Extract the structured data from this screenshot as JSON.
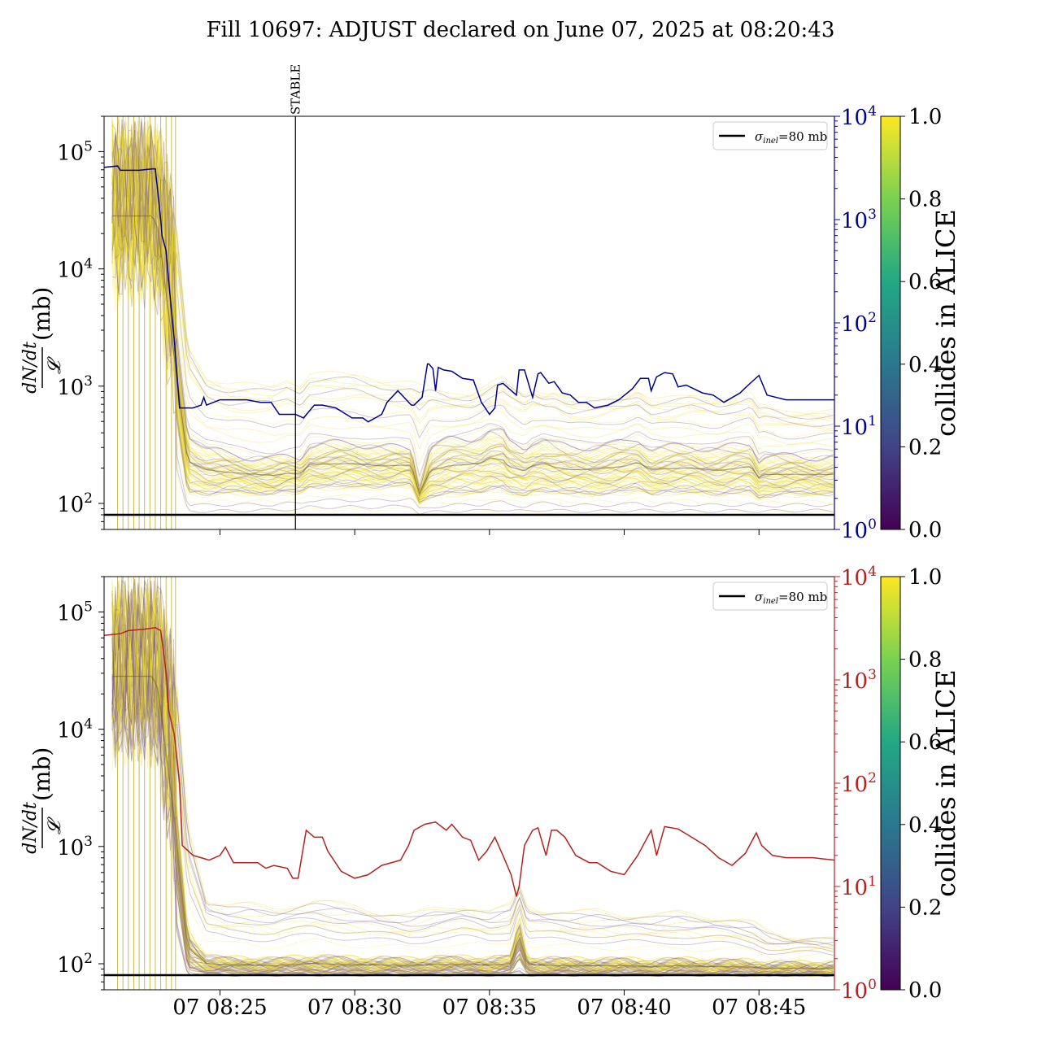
{
  "title": "Fill 10697: ADJUST declared on June 07, 2025 at 08:20:43",
  "colors": {
    "top_right_axis": "#00008b",
    "bottom_right_axis": "#b22222",
    "reference_line": "#000000",
    "viridis": [
      "#440154",
      "#414487",
      "#2a788e",
      "#22a884",
      "#7ad151",
      "#fde725"
    ]
  },
  "chart_data": [
    {
      "type": "line",
      "panel": "top",
      "ylabel": "dN/dt / 𝓛 (mb)",
      "ylabel_num": "dN/dt",
      "ylabel_den": "𝓛",
      "ylabel_unit": "(mb)",
      "yscale": "log",
      "ylim": [
        60,
        200000
      ],
      "y_ticks": [
        {
          "exp": "2",
          "value": 100
        },
        {
          "exp": "3",
          "value": 1000
        },
        {
          "exp": "4",
          "value": 10000
        },
        {
          "exp": "5",
          "value": 100000
        }
      ],
      "y2scale": "log",
      "y2lim": [
        1,
        10000
      ],
      "y2_ticks": [
        {
          "exp": "0",
          "value": 1
        },
        {
          "exp": "1",
          "value": 10
        },
        {
          "exp": "2",
          "value": 100
        },
        {
          "exp": "3",
          "value": 1000
        },
        {
          "exp": "4",
          "value": 10000
        }
      ],
      "x_ticks": [
        "07 08:25",
        "07 08:30",
        "07 08:35",
        "07 08:40",
        "07 08:45"
      ],
      "xlim_minutes": [
        20.7,
        47.8
      ],
      "x_tick_minutes": [
        25,
        30,
        35,
        40,
        45
      ],
      "show_x_tick_labels": false,
      "annotation": {
        "text": "STABLE",
        "x_minute": 27.8
      },
      "reference_line": {
        "label_sym": "σ",
        "label_sub": "inel",
        "label_rest": "=80 mb",
        "value": 80
      },
      "colorbar": {
        "label": "collides in ALICE",
        "ticks": [
          "0.0",
          "0.2",
          "0.4",
          "0.6",
          "0.8",
          "1.0"
        ],
        "range": [
          0,
          1
        ]
      },
      "right_series": {
        "name": "",
        "x_minutes": [
          20.7,
          21.2,
          21.3,
          22.0,
          22.5,
          22.6,
          22.8,
          22.85,
          23.0,
          23.1,
          23.3,
          23.5,
          23.6,
          24.0,
          24.3,
          24.4,
          24.5,
          25.0,
          25.3,
          25.5,
          26.0,
          26.5,
          26.9,
          27.2,
          27.5,
          27.8,
          28.1,
          28.5,
          28.8,
          29.3,
          29.9,
          30.3,
          30.5,
          31.0,
          31.2,
          31.6,
          32.1,
          32.2,
          32.5,
          32.7,
          32.75,
          32.9,
          33.0,
          33.1,
          33.3,
          33.6,
          34.0,
          34.4,
          34.7,
          35.0,
          35.2,
          35.3,
          35.5,
          36.0,
          36.1,
          36.3,
          36.6,
          36.8,
          36.9,
          37.2,
          37.4,
          37.7,
          38.0,
          38.3,
          38.6,
          38.9,
          39.4,
          39.8,
          40.3,
          40.6,
          40.9,
          41.0,
          41.2,
          41.5,
          41.8,
          42.0,
          42.3,
          42.9,
          43.3,
          43.7,
          44.3,
          44.6,
          45.0,
          45.3,
          46.0,
          47.0,
          47.8
        ],
        "values": [
          3200,
          3300,
          3000,
          3000,
          3100,
          3100,
          1000,
          700,
          500,
          250,
          70,
          15,
          15,
          15,
          16,
          19,
          16,
          18,
          18,
          18,
          18,
          17,
          17,
          13,
          13,
          13,
          12,
          16,
          16,
          15,
          12,
          12,
          11,
          13,
          17,
          22,
          16,
          16,
          19,
          40,
          40,
          36,
          22,
          37,
          35,
          34,
          29,
          28,
          17,
          13,
          15,
          25,
          26,
          20,
          35,
          35,
          19,
          32,
          33,
          26,
          27,
          21,
          20,
          17,
          17,
          15,
          16,
          18,
          23,
          29,
          29,
          22,
          30,
          33,
          32,
          24,
          25,
          21,
          20,
          17,
          21,
          25,
          31,
          20,
          18,
          18,
          18
        ]
      },
      "bands": {
        "x_minutes": [
          21.0,
          22.5,
          22.7,
          23.3,
          23.8,
          24.5,
          25.3,
          27.0,
          27.5,
          28.0,
          28.3,
          30.0,
          31.0,
          32.1,
          32.4,
          32.8,
          33.5,
          34.3,
          34.7,
          35.0,
          35.5,
          35.7,
          36.3,
          36.6,
          37.0,
          37.4,
          38.0,
          39.0,
          40.0,
          40.5,
          41.0,
          41.5,
          42.5,
          43.5,
          44.7,
          45.0,
          45.2,
          46.0,
          47.8
        ],
        "upper": [
          200000,
          200000,
          200000,
          60000,
          3000,
          1500,
          1300,
          1300,
          1500,
          1300,
          1600,
          1600,
          1400,
          1300,
          1400,
          1200,
          1000,
          1000,
          1100,
          1200,
          1400,
          1300,
          1000,
          1100,
          1000,
          1100,
          900,
          900,
          1000,
          1100,
          900,
          900,
          1000,
          900,
          1000,
          800,
          800,
          700,
          700
        ],
        "core_hi": [
          80000,
          80000,
          60000,
          4000,
          400,
          300,
          260,
          240,
          250,
          250,
          320,
          330,
          300,
          300,
          140,
          300,
          350,
          360,
          380,
          420,
          400,
          330,
          300,
          340,
          360,
          320,
          300,
          310,
          330,
          360,
          300,
          300,
          310,
          290,
          330,
          240,
          260,
          250,
          250
        ],
        "core_lo": [
          10000,
          10000,
          8000,
          800,
          130,
          125,
          130,
          125,
          130,
          130,
          145,
          145,
          145,
          150,
          105,
          120,
          125,
          130,
          130,
          140,
          140,
          130,
          120,
          130,
          135,
          130,
          125,
          125,
          130,
          140,
          125,
          130,
          130,
          125,
          130,
          115,
          120,
          125,
          125
        ],
        "lower": [
          3000,
          3000,
          2000,
          200,
          82,
          82,
          82,
          84,
          85,
          85,
          88,
          88,
          88,
          90,
          80,
          80,
          82,
          82,
          82,
          84,
          84,
          82,
          82,
          83,
          84,
          83,
          82,
          82,
          82,
          83,
          82,
          82,
          82,
          82,
          83,
          82,
          82,
          83,
          83
        ]
      },
      "spike_lines": [
        21.2,
        21.4,
        21.6,
        21.8,
        22.0,
        22.2,
        22.4,
        22.6,
        22.8,
        23.0,
        23.2,
        23.35
      ]
    },
    {
      "type": "line",
      "panel": "bottom",
      "ylabel": "dN/dt / 𝓛 (mb)",
      "ylabel_num": "dN/dt",
      "ylabel_den": "𝓛",
      "ylabel_unit": "(mb)",
      "yscale": "log",
      "ylim": [
        60,
        200000
      ],
      "y_ticks": [
        {
          "exp": "2",
          "value": 100
        },
        {
          "exp": "3",
          "value": 1000
        },
        {
          "exp": "4",
          "value": 10000
        },
        {
          "exp": "5",
          "value": 100000
        }
      ],
      "y2scale": "log",
      "y2lim": [
        1,
        10000
      ],
      "y2_ticks": [
        {
          "exp": "0",
          "value": 1
        },
        {
          "exp": "1",
          "value": 10
        },
        {
          "exp": "2",
          "value": 100
        },
        {
          "exp": "3",
          "value": 1000
        },
        {
          "exp": "4",
          "value": 10000
        }
      ],
      "x_ticks": [
        "07 08:25",
        "07 08:30",
        "07 08:35",
        "07 08:40",
        "07 08:45"
      ],
      "xlim_minutes": [
        20.7,
        47.8
      ],
      "x_tick_minutes": [
        25,
        30,
        35,
        40,
        45
      ],
      "show_x_tick_labels": true,
      "reference_line": {
        "label_sym": "σ",
        "label_sub": "inel",
        "label_rest": "=80 mb",
        "value": 80
      },
      "colorbar": {
        "label": "collides in ALICE",
        "ticks": [
          "0.0",
          "0.2",
          "0.4",
          "0.6",
          "0.8",
          "1.0"
        ],
        "range": [
          0,
          1
        ]
      },
      "right_series": {
        "name": "",
        "x_minutes": [
          20.7,
          21.3,
          21.6,
          22.2,
          22.6,
          22.8,
          23.0,
          23.1,
          23.3,
          23.5,
          23.6,
          24.0,
          24.3,
          24.6,
          25.0,
          25.2,
          25.5,
          26.0,
          26.4,
          26.7,
          27.0,
          27.5,
          27.7,
          27.9,
          28.2,
          28.5,
          28.8,
          29.0,
          29.5,
          30.0,
          30.5,
          31.0,
          31.7,
          32.0,
          32.2,
          32.6,
          33.0,
          33.4,
          33.6,
          34.0,
          34.3,
          34.6,
          34.9,
          35.2,
          35.5,
          35.8,
          36.0,
          36.1,
          36.3,
          36.6,
          36.8,
          37.1,
          37.3,
          37.5,
          37.8,
          38.2,
          38.7,
          39.0,
          39.5,
          40.0,
          40.5,
          41.0,
          41.2,
          41.5,
          42.0,
          42.5,
          43.0,
          43.5,
          44.0,
          44.5,
          44.9,
          45.1,
          45.5,
          46.0,
          47.0,
          47.8
        ],
        "values": [
          2700,
          2800,
          3000,
          3100,
          3200,
          3000,
          1200,
          500,
          300,
          100,
          25,
          20,
          19,
          18,
          20,
          24,
          17,
          17,
          17,
          15,
          16,
          15,
          12,
          12,
          35,
          30,
          30,
          22,
          14,
          12,
          13,
          16,
          18,
          25,
          35,
          40,
          42,
          35,
          40,
          30,
          28,
          18,
          22,
          30,
          20,
          13,
          8,
          10,
          25,
          35,
          37,
          20,
          35,
          35,
          30,
          20,
          17,
          17,
          14,
          13,
          20,
          35,
          20,
          38,
          36,
          30,
          25,
          19,
          16,
          21,
          33,
          25,
          20,
          19,
          19,
          18
        ]
      },
      "bands": {
        "x_minutes": [
          21.0,
          22.5,
          22.7,
          23.3,
          23.8,
          24.5,
          25.3,
          26.0,
          27.0,
          28.5,
          30.0,
          31.0,
          32.0,
          33.0,
          34.0,
          35.0,
          35.8,
          36.1,
          36.4,
          37.0,
          38.0,
          39.0,
          40.0,
          41.0,
          42.0,
          43.0,
          44.0,
          44.8,
          45.3,
          46.0,
          47.8
        ],
        "upper": [
          200000,
          200000,
          200000,
          60000,
          2000,
          400,
          350,
          360,
          330,
          380,
          350,
          300,
          280,
          330,
          350,
          300,
          350,
          500,
          350,
          320,
          300,
          310,
          290,
          280,
          300,
          280,
          260,
          240,
          200,
          180,
          170
        ],
        "core_hi": [
          80000,
          80000,
          60000,
          4000,
          200,
          115,
          110,
          110,
          108,
          115,
          110,
          110,
          108,
          112,
          112,
          110,
          115,
          250,
          112,
          110,
          108,
          108,
          108,
          105,
          108,
          106,
          105,
          104,
          100,
          100,
          100
        ],
        "core_lo": [
          10000,
          10000,
          8000,
          800,
          95,
          88,
          87,
          87,
          86,
          88,
          87,
          87,
          86,
          87,
          87,
          86,
          88,
          120,
          87,
          86,
          86,
          86,
          86,
          85,
          86,
          85,
          85,
          84,
          84,
          84,
          84
        ],
        "lower": [
          3000,
          3000,
          2000,
          200,
          81,
          80,
          80,
          80,
          80,
          80,
          80,
          80,
          80,
          80,
          80,
          80,
          80,
          82,
          80,
          80,
          80,
          80,
          80,
          80,
          80,
          80,
          80,
          80,
          80,
          80,
          80
        ]
      },
      "spike_lines": [
        21.2,
        21.4,
        21.6,
        21.8,
        22.0,
        22.2,
        22.4,
        22.6,
        22.8,
        23.0,
        23.2,
        23.35
      ]
    }
  ]
}
